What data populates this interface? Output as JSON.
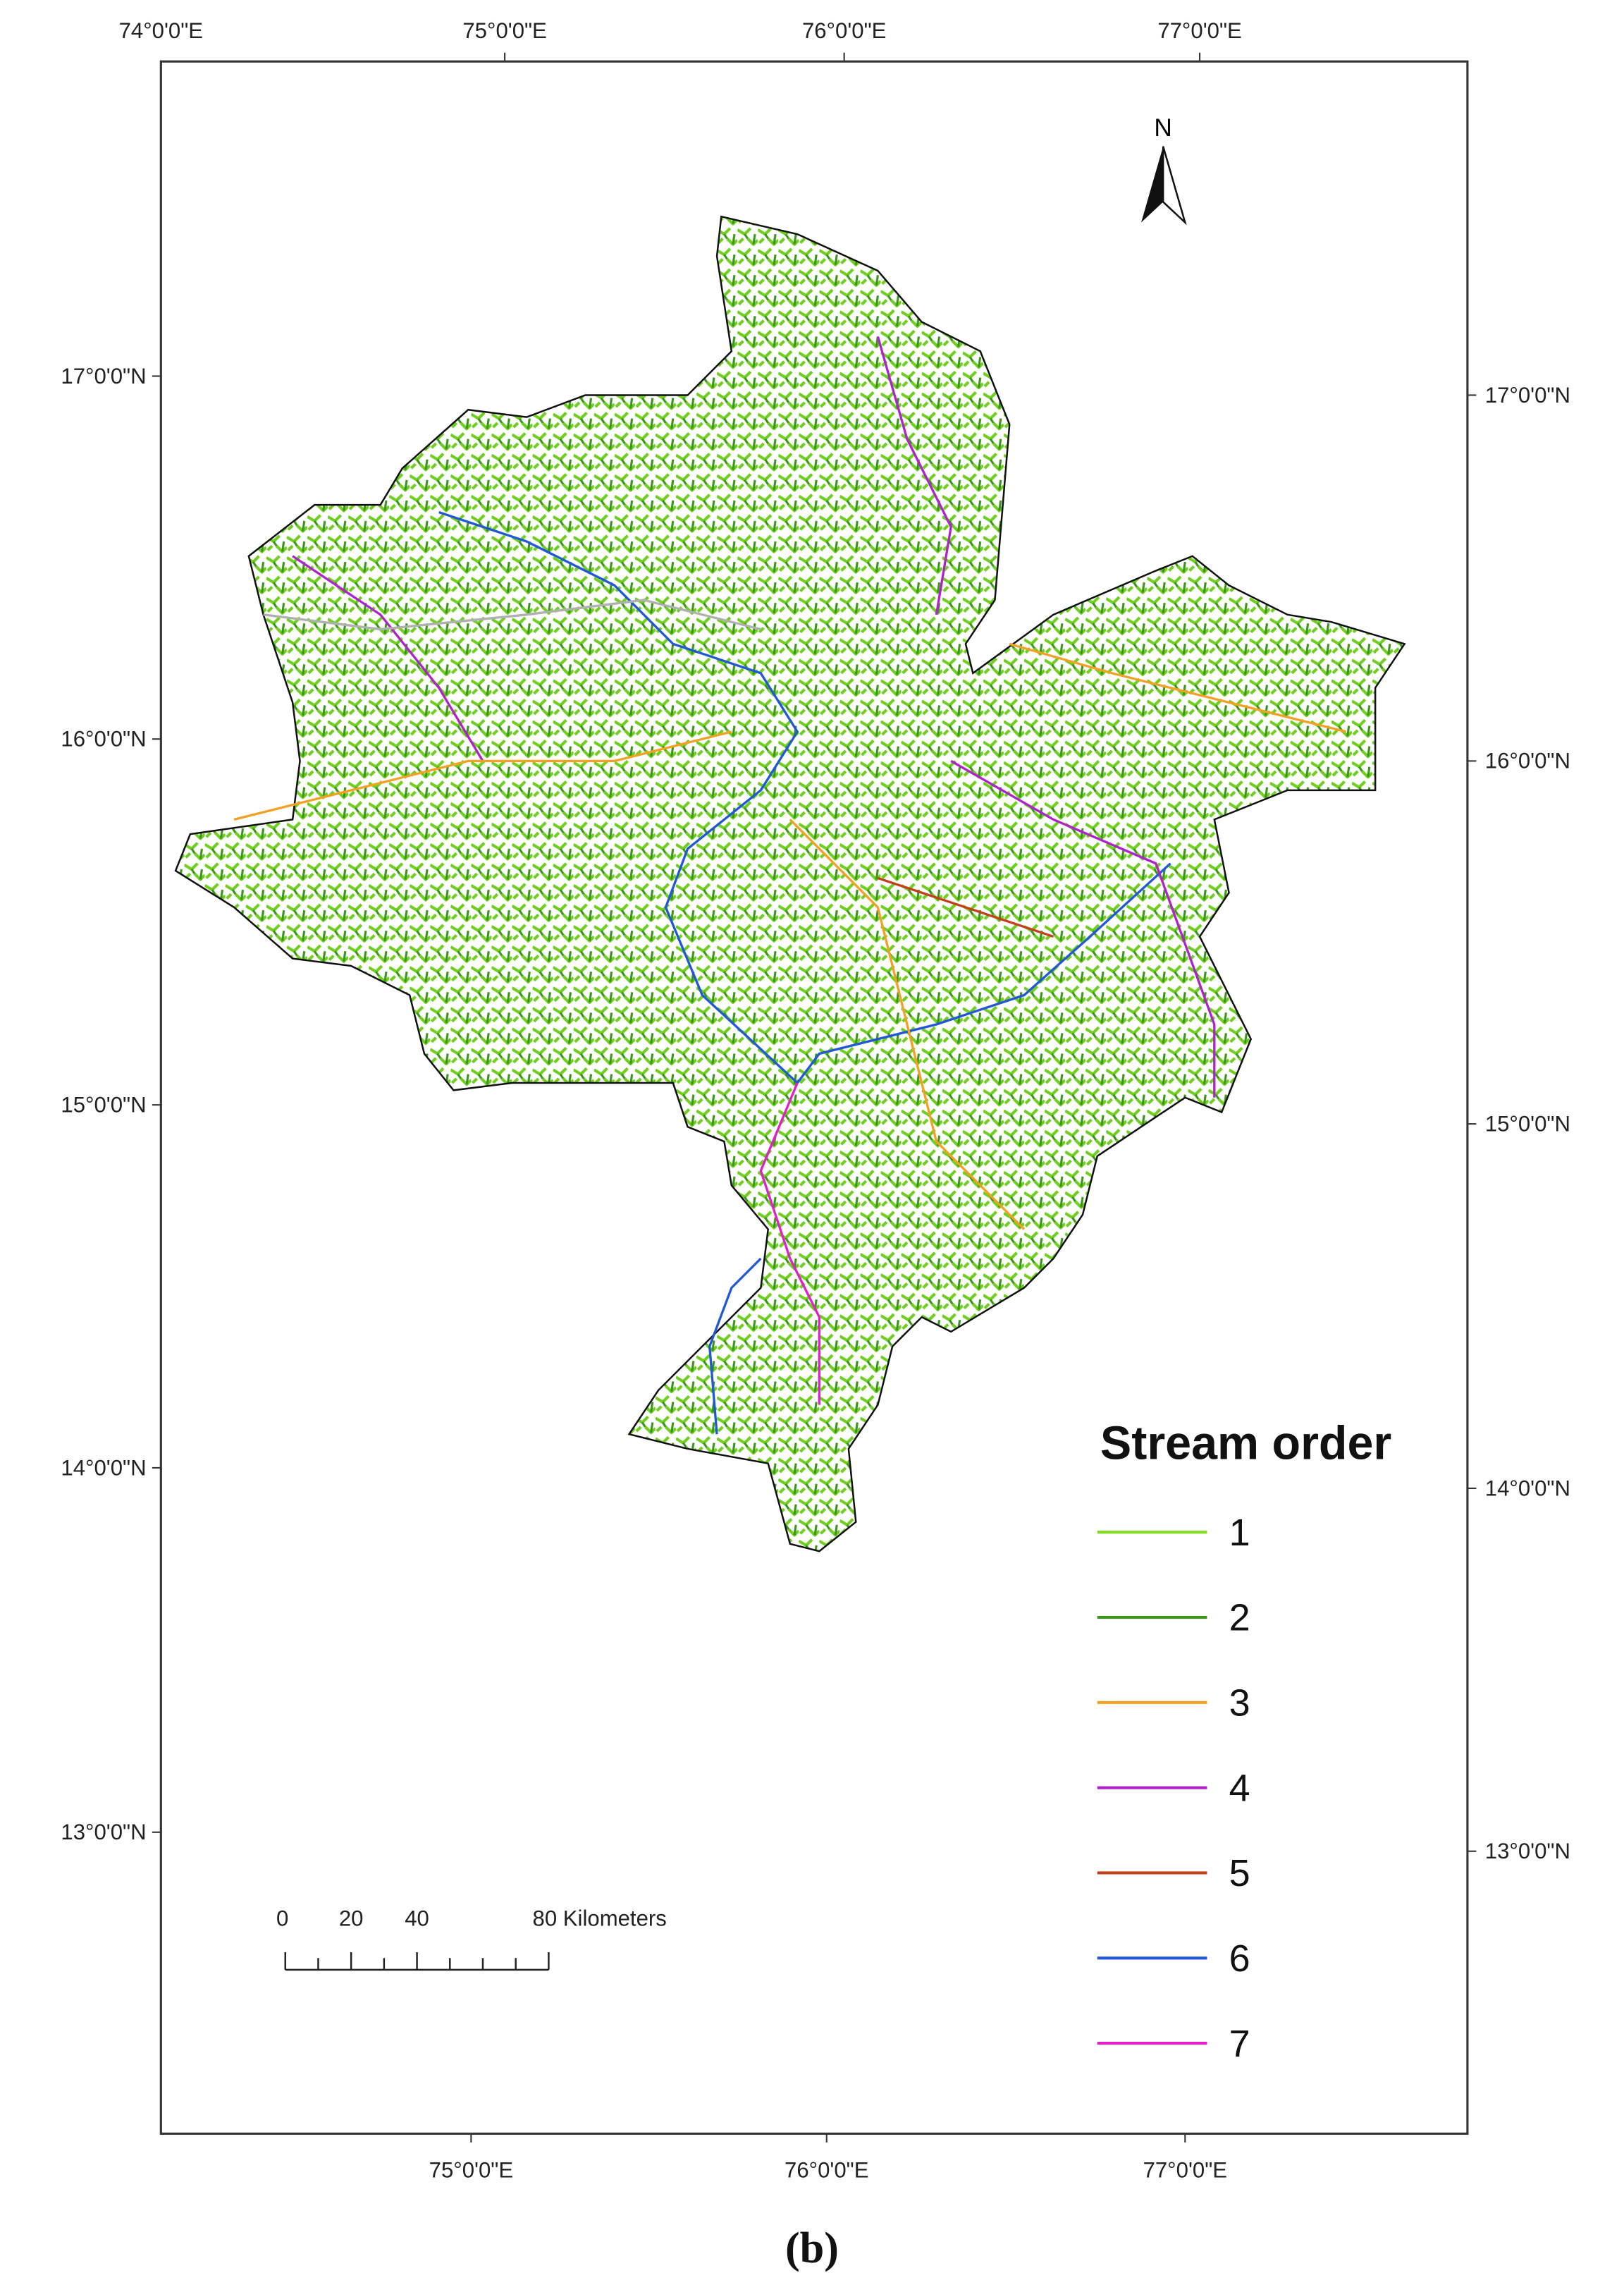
{
  "axes": {
    "top": [
      "74°0'0\"E",
      "75°0'0\"E",
      "76°0'0\"E",
      "77°0'0\"E"
    ],
    "bottom": [
      "75°0'0\"E",
      "76°0'0\"E",
      "77°0'0\"E"
    ],
    "left": [
      "17°0'0\"N",
      "16°0'0\"N",
      "15°0'0\"N",
      "14°0'0\"N",
      "13°0'0\"N"
    ],
    "right": [
      "17°0'0\"N",
      "16°0'0\"N",
      "15°0'0\"N",
      "14°0'0\"N",
      "13°0'0\"N"
    ]
  },
  "north": "N",
  "legend": {
    "title": "Stream order",
    "items": [
      {
        "label": "1",
        "color": "#7fdc22"
      },
      {
        "label": "2",
        "color": "#3a961a"
      },
      {
        "label": "3",
        "color": "#f4a024"
      },
      {
        "label": "4",
        "color": "#b022cc"
      },
      {
        "label": "5",
        "color": "#c4401c"
      },
      {
        "label": "6",
        "color": "#2058d8"
      },
      {
        "label": "7",
        "color": "#e020c8"
      }
    ]
  },
  "scale_bar": {
    "labels": [
      "0",
      "20",
      "40",
      "80 Kilometers"
    ]
  },
  "caption": "(b)"
}
